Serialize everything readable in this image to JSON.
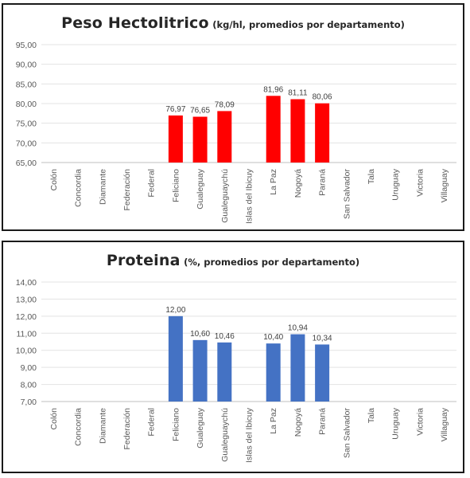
{
  "charts": [
    {
      "title_main": "Peso Hectolitrico",
      "title_sub": "(kg/hl, promedios por departamento)"
    },
    {
      "title_main": "Proteina",
      "title_sub": "(%, promedios por departamento)"
    }
  ],
  "chart_data": [
    {
      "type": "bar",
      "title": "Peso Hectolitrico (kg/hl, promedios por departamento)",
      "categories": [
        "Colón",
        "Concordia",
        "Diamante",
        "Federación",
        "Federal",
        "Feliciano",
        "Gualeguay",
        "Gualeguaychú",
        "Islas del Ibicuy",
        "La Paz",
        "Nogoyá",
        "Paraná",
        "San Salvador",
        "Tala",
        "Uruguay",
        "Victoria",
        "Villaguay"
      ],
      "values": [
        null,
        null,
        null,
        null,
        null,
        76.97,
        76.65,
        78.09,
        null,
        81.96,
        81.11,
        80.06,
        null,
        null,
        null,
        null,
        null
      ],
      "value_labels": [
        "",
        "",
        "",
        "",
        "",
        "76,97",
        "76,65",
        "78,09",
        "",
        "81,96",
        "81,11",
        "80,06",
        "",
        "",
        "",
        "",
        ""
      ],
      "yticks": [
        "65,00",
        "70,00",
        "75,00",
        "80,00",
        "85,00",
        "90,00",
        "95,00"
      ],
      "ylim": [
        65,
        95
      ],
      "bar_color": "#ff0000",
      "grid": true
    },
    {
      "type": "bar",
      "title": "Proteina (%, promedios por departamento)",
      "categories": [
        "Colón",
        "Concordia",
        "Diamante",
        "Federación",
        "Federal",
        "Feliciano",
        "Gualeguay",
        "Gualeguaychú",
        "Islas del Ibicuy",
        "La Paz",
        "Nogoyá",
        "Paraná",
        "San Salvador",
        "Tala",
        "Uruguay",
        "Victoria",
        "Villaguay"
      ],
      "values": [
        null,
        null,
        null,
        null,
        null,
        12.0,
        10.6,
        10.46,
        null,
        10.4,
        10.94,
        10.34,
        null,
        null,
        null,
        null,
        null
      ],
      "value_labels": [
        "",
        "",
        "",
        "",
        "",
        "12,00",
        "10,60",
        "10,46",
        "",
        "10,40",
        "10,94",
        "10,34",
        "",
        "",
        "",
        "",
        ""
      ],
      "yticks": [
        "7,00",
        "8,00",
        "9,00",
        "10,00",
        "11,00",
        "12,00",
        "13,00",
        "14,00"
      ],
      "ylim": [
        7,
        14
      ],
      "bar_color": "#4472c4",
      "grid": true
    }
  ]
}
